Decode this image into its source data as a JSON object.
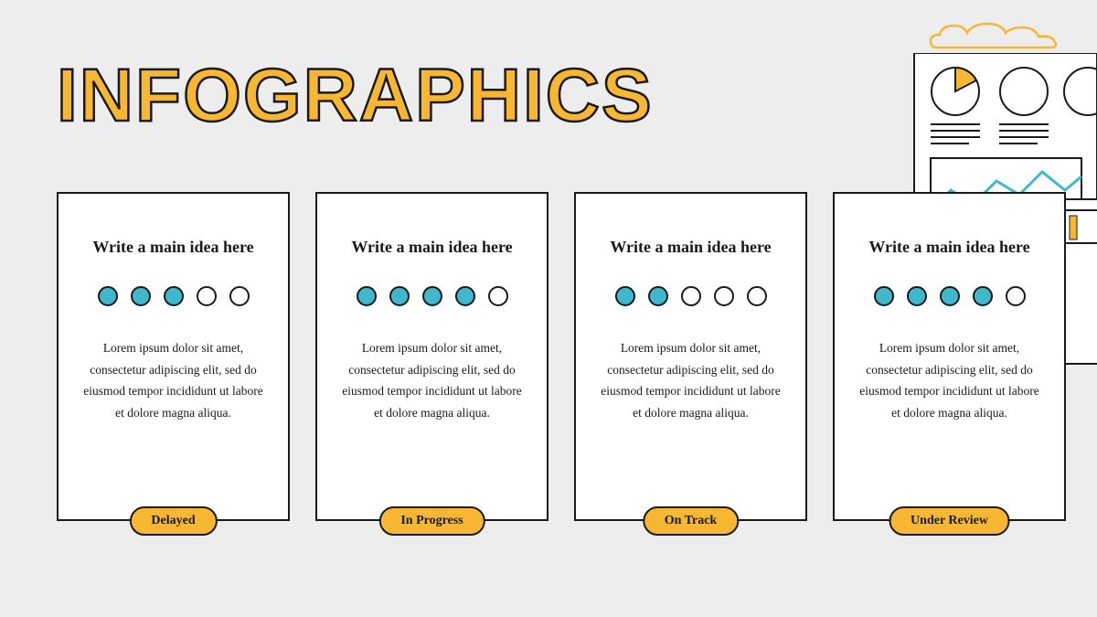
{
  "title": "INFOGRAPHICS",
  "palette": {
    "background": "#ededed",
    "card_bg": "#ffffff",
    "stroke": "#1a1a1a",
    "accent_yellow": "#f7b733",
    "accent_teal": "#3fb7cc"
  },
  "typography": {
    "title_fontsize": 82,
    "card_title_fontsize": 18,
    "body_fontsize": 13.5,
    "pill_fontsize": 14
  },
  "cards": [
    {
      "title": "Write a main idea here",
      "dots_filled": 3,
      "dots_total": 5,
      "body": "Lorem ipsum dolor sit amet, consectetur adipiscing elit, sed do eiusmod tempor incididunt ut labore et dolore magna aliqua.",
      "status": "Delayed"
    },
    {
      "title": "Write a main idea here",
      "dots_filled": 4,
      "dots_total": 5,
      "body": "Lorem ipsum dolor sit amet, consectetur adipiscing elit, sed do eiusmod tempor incididunt ut labore et dolore magna aliqua.",
      "status": "In Progress"
    },
    {
      "title": "Write a main idea here",
      "dots_filled": 2,
      "dots_total": 5,
      "body": "Lorem ipsum dolor sit amet, consectetur adipiscing elit, sed do eiusmod tempor incididunt ut labore et dolore magna aliqua.",
      "status": "On Track"
    },
    {
      "title": "Write a main idea here",
      "dots_filled": 4,
      "dots_total": 5,
      "body": "Lorem ipsum dolor sit amet, consectetur adipiscing elit, sed do eiusmod tempor incididunt ut labore et dolore magna aliqua.",
      "status": "Under Review"
    }
  ],
  "decor": {
    "cloud_color": "#f7b733",
    "report_bg": "#ffffff",
    "report_stroke": "#1a1a1a",
    "pie_slice_color": "#f7b733",
    "chart_fill": "#3fb7cc",
    "bar_fill": "#f7b733"
  }
}
